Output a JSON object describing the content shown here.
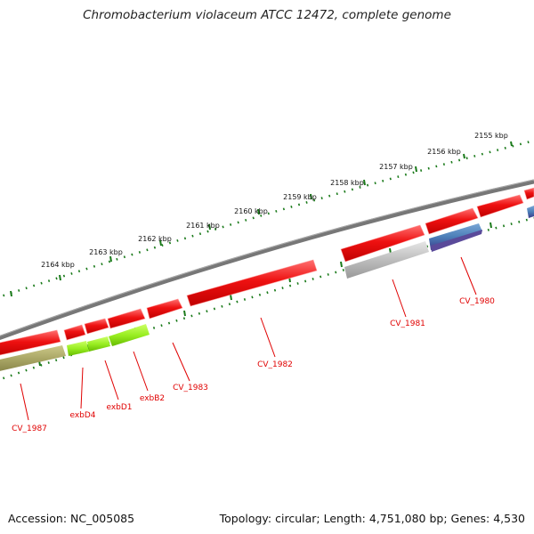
{
  "title": "Chromobacterium violaceum ATCC 12472, complete genome",
  "accession_text": "Accession: NC_005085",
  "summary_text": "Topology: circular; Length: 4,751,080 bp; Genes: 4,530",
  "colors": {
    "backbone": "#777777",
    "tick": "#1a7a1a",
    "gene_red": "#ee1111",
    "label_red": "#e00000"
  },
  "scale_labels": [
    "2155 kbp",
    "2156 kbp",
    "2157 kbp",
    "2158 kbp",
    "2159 kbp",
    "2160 kbp",
    "2161 kbp",
    "2162 kbp",
    "2163 kbp",
    "2164 kbp"
  ],
  "gene_labels": [
    "CV_1980",
    "CV_1981",
    "CV_1982",
    "CV_1983",
    "exbB2",
    "exbD1",
    "exbD4",
    "CV_1987"
  ],
  "genes": [
    {
      "name": "CV_1980",
      "strand": "reverse",
      "color": "#4a4a9a"
    },
    {
      "name": "CV_1981",
      "strand": "reverse",
      "color": "#bbbbbb"
    },
    {
      "name": "CV_1982",
      "strand": "forward",
      "color": "#ee1111"
    },
    {
      "name": "CV_1983",
      "strand": "forward",
      "color": "#ee1111"
    },
    {
      "name": "exbB2",
      "strand": "reverse",
      "color": "#88dd22"
    },
    {
      "name": "exbD1",
      "strand": "reverse",
      "color": "#99ee33"
    },
    {
      "name": "exbD4",
      "strand": "reverse",
      "color": "#99ee33"
    },
    {
      "name": "CV_1987",
      "strand": "reverse",
      "color": "#aaaa66"
    }
  ]
}
